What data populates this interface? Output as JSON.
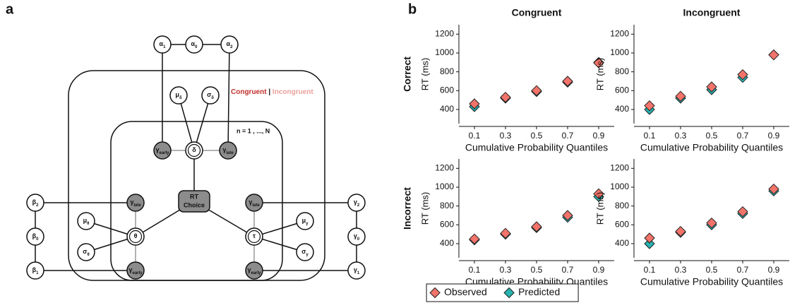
{
  "panel_labels": [
    "a",
    "b"
  ],
  "diagram": {
    "plate_labels": {
      "conditions": [
        "Congruent",
        "|",
        "Incongruent"
      ],
      "subjects": "n = 1 , ..., N"
    },
    "nodes": [
      {
        "label": "α",
        "sub": "1"
      },
      {
        "label": "α",
        "sub": "0"
      },
      {
        "label": "α",
        "sub": "2"
      },
      {
        "label": "μ",
        "sub": "δ"
      },
      {
        "label": "σ",
        "sub": "δ"
      },
      {
        "label": "γ",
        "sub": "early"
      },
      {
        "label": "δ"
      },
      {
        "label": "γ",
        "sub": "late"
      },
      {
        "lines": [
          "RT",
          "Choice"
        ]
      },
      {
        "label": "γ",
        "sub": "late"
      },
      {
        "label": "γ",
        "sub": "late"
      },
      {
        "label": "μ",
        "sub": "θ"
      },
      {
        "label": "σ",
        "sub": "θ"
      },
      {
        "label": "θ"
      },
      {
        "label": "μ",
        "sub": "γ"
      },
      {
        "label": "σ",
        "sub": "γ"
      },
      {
        "label": "τ"
      },
      {
        "label": "γ",
        "sub": "early"
      },
      {
        "label": "γ",
        "sub": "early"
      },
      {
        "label": "β",
        "sub": "2"
      },
      {
        "label": "β",
        "sub": "0"
      },
      {
        "label": "β",
        "sub": "1"
      },
      {
        "label": "γ",
        "sub": "2"
      },
      {
        "label": "γ",
        "sub": "0"
      },
      {
        "label": "γ",
        "sub": "1"
      }
    ]
  },
  "legend": {
    "position": "bottom",
    "entries": [
      {
        "name": "Observed",
        "color": "#f1736a"
      },
      {
        "name": "Predicted",
        "color": "#27b3b0"
      }
    ]
  },
  "chart_data": [
    {
      "type": "scatter",
      "title": "Congruent",
      "row_label": "Correct",
      "xlabel": "Cumulative Probability Quantiles",
      "ylabel": "RT (ms)",
      "x": [
        0.1,
        0.3,
        0.5,
        0.7,
        0.9
      ],
      "xlim": [
        0,
        1
      ],
      "xticks": [
        0.1,
        0.3,
        0.5,
        0.7,
        0.9
      ],
      "ylim": [
        250,
        1300
      ],
      "yticks": [
        400,
        600,
        800,
        1000,
        1200
      ],
      "series": [
        {
          "color": "#f1736a",
          "values": [
            460,
            530,
            600,
            700,
            895
          ]
        },
        {
          "color": "#27b3b0",
          "values": [
            430,
            520,
            590,
            690,
            900
          ]
        }
      ]
    },
    {
      "type": "scatter",
      "title": "Incongruent",
      "xlabel": "Cumulative Probability Quantiles",
      "ylabel": "RT (ms)",
      "x": [
        0.1,
        0.3,
        0.5,
        0.7,
        0.9
      ],
      "xlim": [
        0,
        1
      ],
      "xticks": [
        0.1,
        0.3,
        0.5,
        0.7,
        0.9
      ],
      "ylim": [
        250,
        1300
      ],
      "yticks": [
        400,
        600,
        800,
        1000,
        1200
      ],
      "series": [
        {
          "color": "#f1736a",
          "values": [
            440,
            540,
            640,
            770,
            980
          ]
        },
        {
          "color": "#27b3b0",
          "values": [
            400,
            520,
            610,
            740,
            980
          ]
        }
      ]
    },
    {
      "type": "scatter",
      "row_label": "Incorrect",
      "xlabel": "Cumulative Probability Quantiles",
      "ylabel": "RT (ms)",
      "x": [
        0.1,
        0.3,
        0.5,
        0.7,
        0.9
      ],
      "xlim": [
        0,
        1
      ],
      "xticks": [
        0.1,
        0.3,
        0.5,
        0.7,
        0.9
      ],
      "ylim": [
        250,
        1300
      ],
      "yticks": [
        400,
        600,
        800,
        1000,
        1200
      ],
      "series": [
        {
          "color": "#f1736a",
          "values": [
            450,
            510,
            580,
            700,
            930
          ]
        },
        {
          "color": "#27b3b0",
          "values": [
            440,
            500,
            570,
            680,
            900
          ]
        }
      ]
    },
    {
      "type": "scatter",
      "xlabel": "Cumulative Probability Quantiles",
      "ylabel": "RT (ms)",
      "x": [
        0.1,
        0.3,
        0.5,
        0.7,
        0.9
      ],
      "xlim": [
        0,
        1
      ],
      "xticks": [
        0.1,
        0.3,
        0.5,
        0.7,
        0.9
      ],
      "ylim": [
        250,
        1300
      ],
      "yticks": [
        400,
        600,
        800,
        1000,
        1200
      ],
      "series": [
        {
          "color": "#f1736a",
          "values": [
            460,
            530,
            620,
            740,
            980
          ]
        },
        {
          "color": "#27b3b0",
          "values": [
            400,
            520,
            600,
            720,
            960
          ]
        }
      ]
    }
  ]
}
